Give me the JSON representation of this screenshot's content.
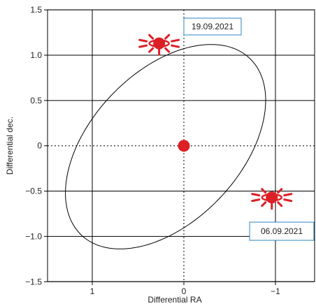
{
  "chart_data": {
    "type": "scatter",
    "xlabel": "Differential RA",
    "ylabel": "Differential dec.",
    "xlim": [
      1.5,
      -1.4
    ],
    "ylim": [
      -1.5,
      1.5
    ],
    "x_reversed": true,
    "x_ticks": [
      1,
      0,
      -1
    ],
    "x_tick_labels": [
      "1",
      "0",
      "−1"
    ],
    "y_ticks": [
      1.5,
      1.0,
      0.5,
      0,
      -0.5,
      -1.0,
      -1.5
    ],
    "y_tick_labels": [
      "1.5",
      "1.0",
      "0.5",
      "0",
      "−0.5",
      "−1.0",
      "−1.5"
    ],
    "grid": true,
    "center_point": {
      "x": 0,
      "y": 0
    },
    "orbit": {
      "center": {
        "x": 0.2,
        "y": -0.01
      },
      "semi_major": 1.34,
      "semi_minor": 0.82,
      "angle_deg": -47
    },
    "events": [
      {
        "x": 0.27,
        "y": 1.13,
        "label": "19.09.2021"
      },
      {
        "x": -0.96,
        "y": -0.57,
        "label": "06.09.2021"
      }
    ],
    "colors": {
      "point": "#dd1f26",
      "label_border": "#2e86c1",
      "axis": "#000000"
    }
  }
}
